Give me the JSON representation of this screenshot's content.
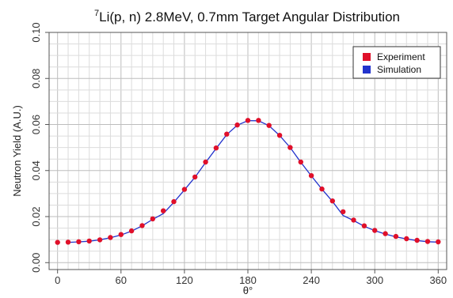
{
  "chart_data": {
    "type": "line",
    "title_prefix": "7",
    "title": "Li(p, n) 2.8MeV, 0.7mm Target Angular Distribution",
    "xlabel": "θ°",
    "ylabel": "Neutron Yield (A.U.)",
    "xlim": [
      -8,
      368
    ],
    "ylim": [
      -0.003,
      0.1
    ],
    "x_ticks": [
      0,
      60,
      120,
      180,
      240,
      300,
      360
    ],
    "y_ticks": [
      0.0,
      0.02,
      0.04,
      0.06,
      0.08,
      0.1
    ],
    "y_tick_labels": [
      "0.00",
      "0.02",
      "0.04",
      "0.06",
      "0.08",
      "0.10"
    ],
    "grid": true,
    "legend_position": "top-right",
    "series": [
      {
        "name": "Experiment",
        "style": "points",
        "color": "#e0102a",
        "x": [
          0,
          10,
          20,
          30,
          40,
          50,
          60,
          70,
          80,
          90,
          100,
          110,
          120,
          130,
          140,
          150,
          160,
          170,
          180,
          190,
          200,
          210,
          220,
          230,
          240,
          250,
          260,
          270,
          280,
          290,
          300,
          310,
          320,
          330,
          340,
          350,
          360
        ],
        "y": [
          0.0088,
          0.0089,
          0.0091,
          0.0094,
          0.0099,
          0.0109,
          0.0122,
          0.0138,
          0.0161,
          0.019,
          0.0225,
          0.0265,
          0.0318,
          0.0372,
          0.0437,
          0.0498,
          0.0558,
          0.0598,
          0.0618,
          0.0618,
          0.0596,
          0.0553,
          0.05,
          0.0437,
          0.0378,
          0.032,
          0.0268,
          0.0221,
          0.0185,
          0.016,
          0.014,
          0.0126,
          0.0114,
          0.0104,
          0.0097,
          0.0092,
          0.009
        ]
      },
      {
        "name": "Simulation",
        "style": "line",
        "color": "#2233cc",
        "x": [
          10,
          20,
          30,
          40,
          50,
          60,
          70,
          80,
          90,
          100,
          110,
          120,
          130,
          140,
          150,
          160,
          170,
          180,
          190,
          200,
          210,
          220,
          230,
          240,
          250,
          260,
          270,
          280,
          290,
          300,
          310,
          320,
          330,
          340,
          350,
          360
        ],
        "y": [
          0.0088,
          0.009,
          0.0093,
          0.0099,
          0.0108,
          0.012,
          0.0137,
          0.016,
          0.0188,
          0.0213,
          0.0262,
          0.0316,
          0.0371,
          0.0435,
          0.0496,
          0.0556,
          0.0597,
          0.0617,
          0.0616,
          0.0595,
          0.0552,
          0.05,
          0.0436,
          0.0377,
          0.0319,
          0.0266,
          0.0205,
          0.0183,
          0.0158,
          0.0139,
          0.0124,
          0.0112,
          0.0103,
          0.0096,
          0.0091,
          0.0089
        ]
      }
    ]
  }
}
